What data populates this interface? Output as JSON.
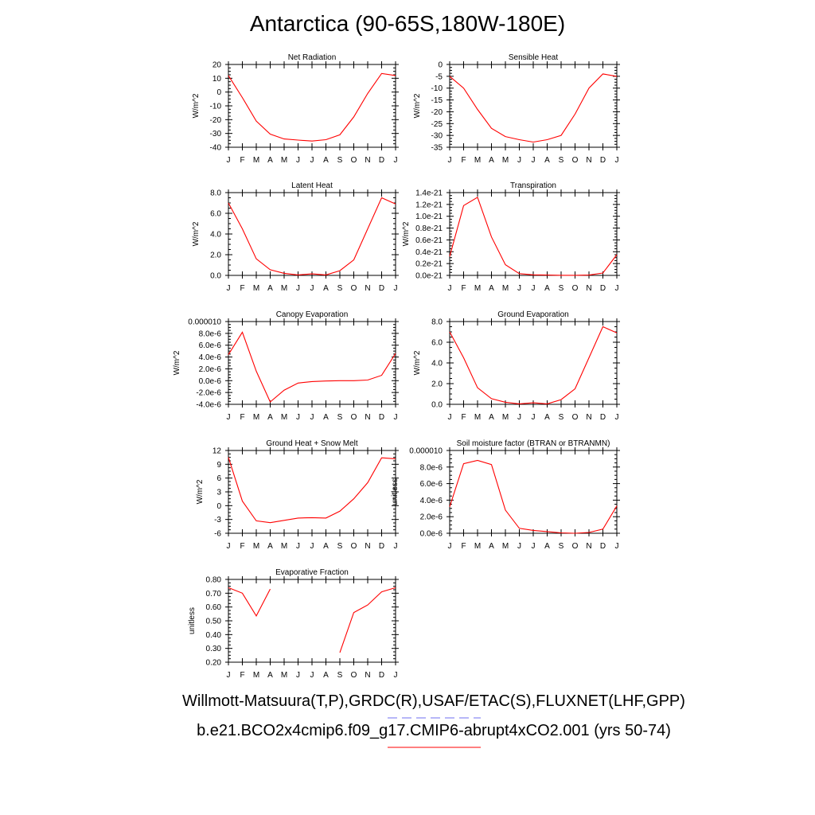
{
  "title": "Antarctica (90-65S,180W-180E)",
  "captions": {
    "obs": "Willmott-Matsuura(T,P),GRDC(R),USAF/ETAC(S),FLUXNET(LHF,GPP)",
    "model": "b.e21.BCO2x4cmip6.f09_g17.CMIP6-abrupt4xCO2.001 (yrs 50-74)",
    "obs_line_color": "#6f6ff0",
    "model_line_color": "#ff0000"
  },
  "colors": {
    "series": "#ff0000",
    "axis": "#000000"
  },
  "chart_data": [
    {
      "type": "line",
      "title": "Net Radiation",
      "ylabel": "W/m^2",
      "categories": [
        "J",
        "F",
        "M",
        "A",
        "M",
        "J",
        "J",
        "A",
        "S",
        "O",
        "N",
        "D",
        "J"
      ],
      "ylim": [
        -40,
        20
      ],
      "yticks": [
        20,
        10,
        0,
        -10,
        -20,
        -30,
        -40
      ],
      "yticklabels": [
        "20",
        "10",
        "0",
        "-10",
        "-20",
        "-30",
        "-40"
      ],
      "series": [
        {
          "values": [
            12,
            -4,
            -21,
            -30.5,
            -34,
            -34.8,
            -35.5,
            -34.5,
            -31,
            -18,
            -1,
            13.5,
            12
          ]
        }
      ]
    },
    {
      "type": "line",
      "title": "Sensible Heat",
      "ylabel": "W/m^2",
      "categories": [
        "J",
        "F",
        "M",
        "A",
        "M",
        "J",
        "J",
        "A",
        "S",
        "O",
        "N",
        "D",
        "J"
      ],
      "ylim": [
        -35,
        0
      ],
      "yticks": [
        0,
        -5,
        -10,
        -15,
        -20,
        -25,
        -30,
        -35
      ],
      "yticklabels": [
        "0",
        "-5",
        "-10",
        "-15",
        "-20",
        "-25",
        "-30",
        "-35"
      ],
      "series": [
        {
          "values": [
            -5,
            -10,
            -19,
            -27,
            -30.5,
            -31.8,
            -32.8,
            -31.8,
            -30,
            -21,
            -10,
            -4,
            -5
          ]
        }
      ]
    },
    {
      "type": "line",
      "title": "Latent Heat",
      "ylabel": "W/m^2",
      "categories": [
        "J",
        "F",
        "M",
        "A",
        "M",
        "J",
        "J",
        "A",
        "S",
        "O",
        "N",
        "D",
        "J"
      ],
      "ylim": [
        0,
        8
      ],
      "yticks": [
        8,
        6,
        4,
        2,
        0
      ],
      "yticklabels": [
        "8.0",
        "6.0",
        "4.0",
        "2.0",
        "0.0"
      ],
      "series": [
        {
          "values": [
            7.0,
            4.5,
            1.6,
            0.55,
            0.2,
            0.05,
            0.15,
            0.05,
            0.45,
            1.5,
            4.5,
            7.5,
            6.9
          ]
        }
      ]
    },
    {
      "type": "line",
      "title": "Transpiration",
      "ylabel": "W/m^2",
      "categories": [
        "J",
        "F",
        "M",
        "A",
        "M",
        "J",
        "J",
        "A",
        "S",
        "O",
        "N",
        "D",
        "J"
      ],
      "ylim": [
        0,
        1.4
      ],
      "yticks": [
        1.4,
        1.2,
        1.0,
        0.8,
        0.6,
        0.4,
        0.2,
        0.0
      ],
      "yticklabels": [
        "1.4e-21",
        "1.2e-21",
        "1.0e-21",
        "0.8e-21",
        "0.6e-21",
        "0.4e-21",
        "0.2e-21",
        "0.0e-21"
      ],
      "series": [
        {
          "values": [
            0.32,
            1.18,
            1.32,
            0.65,
            0.18,
            0.03,
            0.01,
            0.005,
            0.002,
            0.002,
            0.005,
            0.04,
            0.35
          ]
        }
      ]
    },
    {
      "type": "line",
      "title": "Canopy Evaporation",
      "ylabel": "W/m^2",
      "categories": [
        "J",
        "F",
        "M",
        "A",
        "M",
        "J",
        "J",
        "A",
        "S",
        "O",
        "N",
        "D",
        "J"
      ],
      "ylim": [
        -4,
        10
      ],
      "yticks": [
        10,
        8,
        6,
        4,
        2,
        0,
        -2,
        -4
      ],
      "yticklabels": [
        "0.000010",
        "8.0e-6",
        "6.0e-6",
        "4.0e-6",
        "2.0e-6",
        "0.0e-6",
        "-2.0e-6",
        "-4.0e-6"
      ],
      "series": [
        {
          "values": [
            4.4,
            8.2,
            1.6,
            -3.6,
            -1.6,
            -0.4,
            -0.15,
            -0.05,
            0.0,
            0.0,
            0.1,
            0.9,
            4.6
          ]
        }
      ]
    },
    {
      "type": "line",
      "title": "Ground Evaporation",
      "ylabel": "W/m^2",
      "categories": [
        "J",
        "F",
        "M",
        "A",
        "M",
        "J",
        "J",
        "A",
        "S",
        "O",
        "N",
        "D",
        "J"
      ],
      "ylim": [
        0,
        8
      ],
      "yticks": [
        8,
        6,
        4,
        2,
        0
      ],
      "yticklabels": [
        "8.0",
        "6.0",
        "4.0",
        "2.0",
        "0.0"
      ],
      "series": [
        {
          "values": [
            7.0,
            4.5,
            1.6,
            0.55,
            0.2,
            0.05,
            0.15,
            0.05,
            0.45,
            1.5,
            4.5,
            7.5,
            6.9
          ]
        }
      ]
    },
    {
      "type": "line",
      "title": "Ground Heat + Snow Melt",
      "ylabel": "W/m^2",
      "categories": [
        "J",
        "F",
        "M",
        "A",
        "M",
        "J",
        "J",
        "A",
        "S",
        "O",
        "N",
        "D",
        "J"
      ],
      "ylim": [
        -6,
        12
      ],
      "yticks": [
        12,
        9,
        6,
        3,
        0,
        -3,
        -6
      ],
      "yticklabels": [
        "12",
        "9",
        "6",
        "3",
        "0",
        "-3",
        "-6"
      ],
      "series": [
        {
          "values": [
            10.5,
            1.0,
            -3.3,
            -3.7,
            -3.2,
            -2.7,
            -2.6,
            -2.7,
            -1.2,
            1.5,
            5.0,
            10.4,
            10.2
          ]
        }
      ]
    },
    {
      "type": "line",
      "title": "Soil moisture factor (BTRAN or BTRANMN)",
      "ylabel": "unitless",
      "categories": [
        "J",
        "F",
        "M",
        "A",
        "M",
        "J",
        "J",
        "A",
        "S",
        "O",
        "N",
        "D",
        "J"
      ],
      "ylim": [
        0,
        10
      ],
      "yticks": [
        10,
        8,
        6,
        4,
        2,
        0
      ],
      "yticklabels": [
        "0.000010",
        "8.0e-6",
        "6.0e-6",
        "4.0e-6",
        "2.0e-6",
        "0.0e-6"
      ],
      "series": [
        {
          "values": [
            3.2,
            8.4,
            8.8,
            8.3,
            2.8,
            0.6,
            0.35,
            0.2,
            0.05,
            0.0,
            0.1,
            0.5,
            3.3
          ]
        }
      ]
    },
    {
      "type": "line",
      "title": "Evaporative Fraction",
      "ylabel": "unitless",
      "categories": [
        "J",
        "F",
        "M",
        "A",
        "M",
        "J",
        "J",
        "A",
        "S",
        "O",
        "N",
        "D",
        "J"
      ],
      "ylim": [
        0.2,
        0.8
      ],
      "yticks": [
        0.8,
        0.7,
        0.6,
        0.5,
        0.4,
        0.3,
        0.2
      ],
      "yticklabels": [
        "0.80",
        "0.70",
        "0.60",
        "0.50",
        "0.40",
        "0.30",
        "0.20"
      ],
      "series": [
        {
          "values": [
            0.74,
            0.7,
            0.535,
            0.73,
            null,
            null,
            null,
            null,
            0.27,
            0.56,
            0.615,
            0.71,
            0.74
          ]
        }
      ]
    }
  ]
}
